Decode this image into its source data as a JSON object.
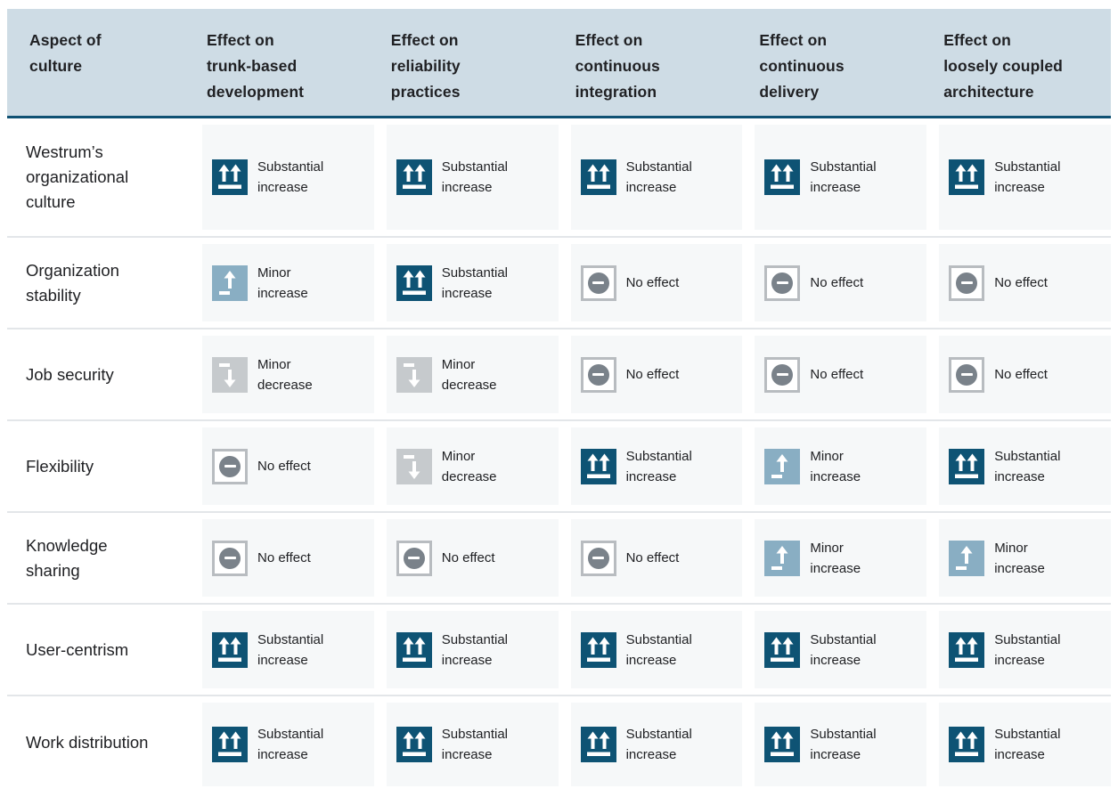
{
  "colors": {
    "header_bg": "#cedce5",
    "header_rule": "#0f5173",
    "cell_bg": "#f6f8f9",
    "row_divider": "#e3e6e9",
    "text": "#202124",
    "substantial_increase_icon": "#0e5374",
    "minor_increase_icon": "#89aec3",
    "minor_decrease_icon": "#c6cacd",
    "no_effect_border": "#b8bcc0",
    "no_effect_circle": "#7a828a"
  },
  "table": {
    "header": {
      "columns": [
        {
          "label": "Aspect of\nculture"
        },
        {
          "label": "Effect on\ntrunk-based\ndevelopment"
        },
        {
          "label": "Effect on\nreliability\npractices"
        },
        {
          "label": "Effect on\ncontinuous\nintegration"
        },
        {
          "label": "Effect on\ncontinuous\ndelivery"
        },
        {
          "label": "Effect on\nloosely coupled\narchitecture"
        }
      ]
    },
    "effect_types": {
      "substantial_increase": {
        "label": "Substantial\nincrease",
        "icon": "double-up-arrows-icon"
      },
      "minor_increase": {
        "label": "Minor\nincrease",
        "icon": "up-arrow-icon"
      },
      "minor_decrease": {
        "label": "Minor\ndecrease",
        "icon": "down-arrow-icon"
      },
      "no_effect": {
        "label": "No effect",
        "icon": "minus-circle-icon"
      }
    },
    "rows": [
      {
        "aspect": "Westrum’s\norganizational\nculture",
        "effects": [
          "substantial_increase",
          "substantial_increase",
          "substantial_increase",
          "substantial_increase",
          "substantial_increase"
        ]
      },
      {
        "aspect": "Organization\nstability",
        "effects": [
          "minor_increase",
          "substantial_increase",
          "no_effect",
          "no_effect",
          "no_effect"
        ]
      },
      {
        "aspect": "Job security",
        "effects": [
          "minor_decrease",
          "minor_decrease",
          "no_effect",
          "no_effect",
          "no_effect"
        ]
      },
      {
        "aspect": "Flexibility",
        "effects": [
          "no_effect",
          "minor_decrease",
          "substantial_increase",
          "minor_increase",
          "substantial_increase"
        ]
      },
      {
        "aspect": "Knowledge\nsharing",
        "effects": [
          "no_effect",
          "no_effect",
          "no_effect",
          "minor_increase",
          "minor_increase"
        ]
      },
      {
        "aspect": "User-centrism",
        "effects": [
          "substantial_increase",
          "substantial_increase",
          "substantial_increase",
          "substantial_increase",
          "substantial_increase"
        ]
      },
      {
        "aspect": "Work distribution",
        "effects": [
          "substantial_increase",
          "substantial_increase",
          "substantial_increase",
          "substantial_increase",
          "substantial_increase"
        ]
      }
    ]
  }
}
